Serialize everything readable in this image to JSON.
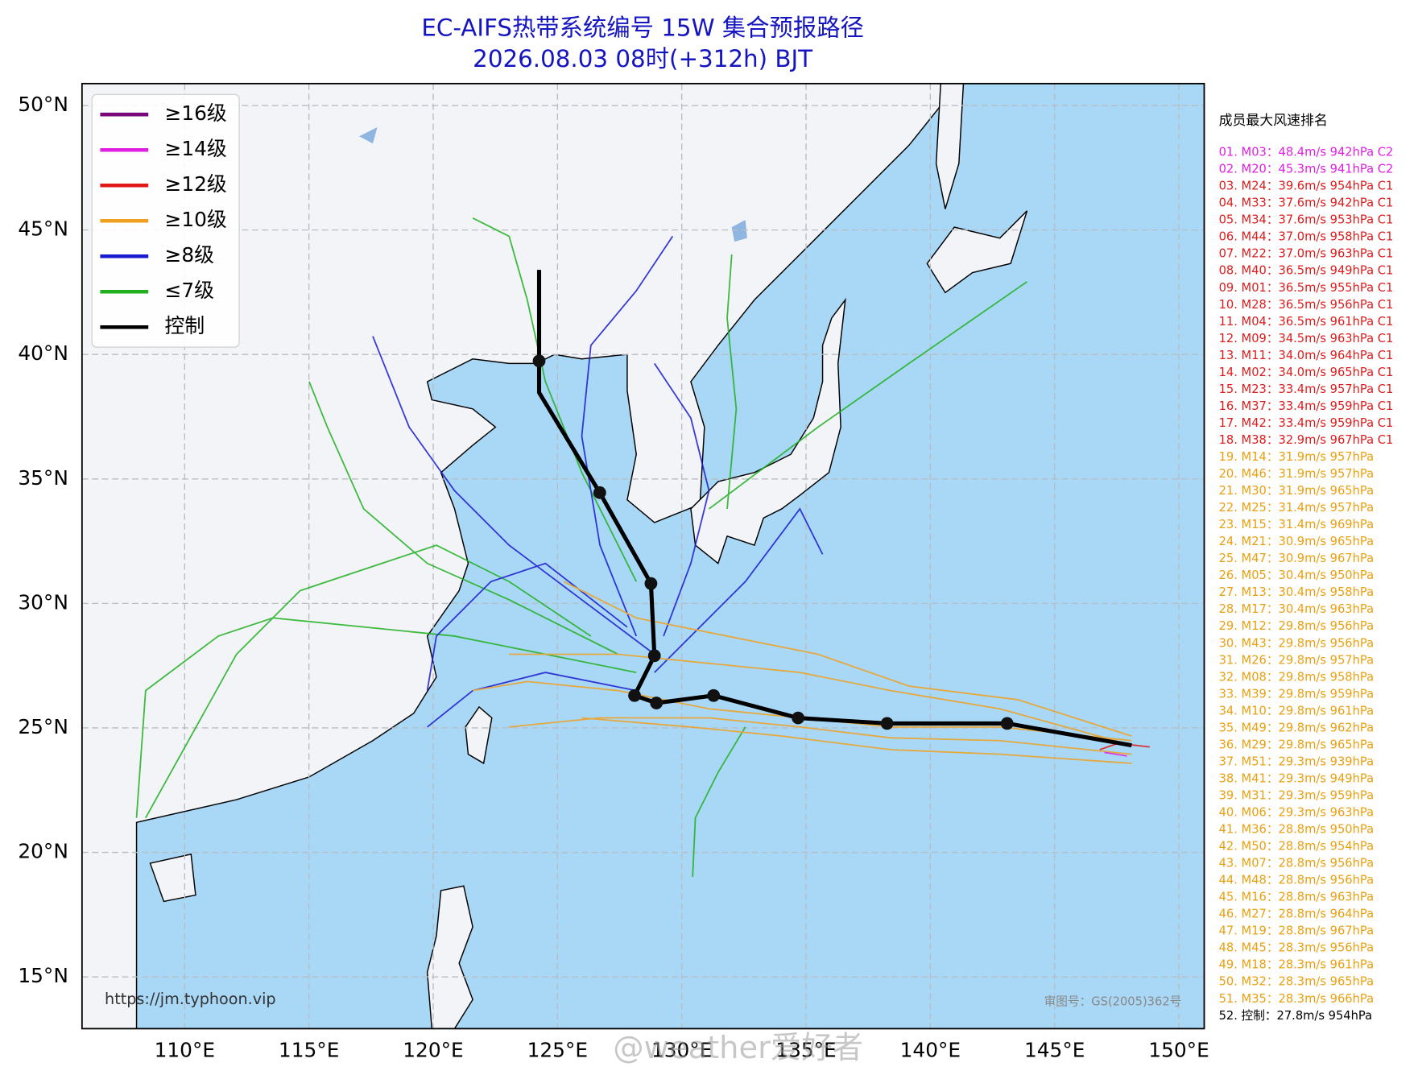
{
  "map": {
    "title": "EC-AIFS热带系统编号 15W 集合预报路径",
    "subtitle": "2026.08.03 08时(+312h) BJT",
    "lonlim": [
      105.87,
      151.02
    ],
    "latlim": [
      12.92,
      50.88
    ],
    "lon_ticks": [
      {
        "value": 110,
        "label": "110°E"
      },
      {
        "value": 115,
        "label": "115°E"
      },
      {
        "value": 120,
        "label": "120°E"
      },
      {
        "value": 125,
        "label": "125°E"
      },
      {
        "value": 130,
        "label": "130°E"
      },
      {
        "value": 135,
        "label": "135°E"
      },
      {
        "value": 140,
        "label": "140°E"
      },
      {
        "value": 145,
        "label": "145°E"
      },
      {
        "value": 150,
        "label": "150°E"
      }
    ],
    "lat_ticks": [
      {
        "value": 15,
        "label": "15°N"
      },
      {
        "value": 20,
        "label": "20°N"
      },
      {
        "value": 25,
        "label": "25°N"
      },
      {
        "value": 30,
        "label": "30°N"
      },
      {
        "value": 35,
        "label": "35°N"
      },
      {
        "value": 40,
        "label": "40°N"
      },
      {
        "value": 45,
        "label": "45°N"
      },
      {
        "value": 50,
        "label": "50°N"
      }
    ],
    "grid": true,
    "legend": [
      {
        "label": "≥16级",
        "color": "#7a0a7a"
      },
      {
        "label": "≥14级",
        "color": "#e020e0"
      },
      {
        "label": "≥12级",
        "color": "#e01818"
      },
      {
        "label": "≥10级",
        "color": "#f0a020"
      },
      {
        "label": "≥8级",
        "color": "#1a1ad0"
      },
      {
        "label": "≤7级",
        "color": "#20b020"
      },
      {
        "label": "控制",
        "color": "#000000"
      }
    ],
    "control_track": {
      "lon": [
        148.1,
        143.09,
        138.26,
        134.68,
        131.28,
        128.98,
        128.1,
        128.9,
        128.76,
        126.7,
        124.26,
        124.26,
        124.26
      ],
      "lat": [
        24.3,
        25.18,
        25.18,
        25.4,
        26.3,
        26.0,
        26.3,
        27.9,
        30.8,
        34.45,
        38.47,
        39.74,
        43.4
      ]
    },
    "control_points": {
      "lon": [
        143.09,
        138.26,
        134.68,
        131.28,
        128.98,
        128.1,
        128.9,
        128.76,
        126.7,
        124.26
      ],
      "lat": [
        25.18,
        25.18,
        25.4,
        26.3,
        26.0,
        26.3,
        27.9,
        30.8,
        34.45,
        39.74
      ]
    },
    "ranking_title": "成员最大风速排名",
    "ranking": [
      {
        "text": "01. M03：48.4m/s 942hPa C2",
        "color": "#e020e0"
      },
      {
        "text": "02. M20：45.3m/s 941hPa C2",
        "color": "#e020e0"
      },
      {
        "text": "03. M24：39.6m/s 954hPa C1",
        "color": "#dd1c1c"
      },
      {
        "text": "04. M33：37.6m/s 942hPa C1",
        "color": "#dd1c1c"
      },
      {
        "text": "05. M34：37.6m/s 953hPa C1",
        "color": "#dd1c1c"
      },
      {
        "text": "06. M44：37.0m/s 958hPa C1",
        "color": "#dd1c1c"
      },
      {
        "text": "07. M22：37.0m/s 963hPa C1",
        "color": "#dd1c1c"
      },
      {
        "text": "08. M40：36.5m/s 949hPa C1",
        "color": "#dd1c1c"
      },
      {
        "text": "09. M01：36.5m/s 955hPa C1",
        "color": "#dd1c1c"
      },
      {
        "text": "10. M28：36.5m/s 956hPa C1",
        "color": "#dd1c1c"
      },
      {
        "text": "11. M04：36.5m/s 961hPa C1",
        "color": "#dd1c1c"
      },
      {
        "text": "12. M09：34.5m/s 963hPa C1",
        "color": "#dd1c1c"
      },
      {
        "text": "13. M11：34.0m/s 964hPa C1",
        "color": "#dd1c1c"
      },
      {
        "text": "14. M02：34.0m/s 965hPa C1",
        "color": "#dd1c1c"
      },
      {
        "text": "15. M23：33.4m/s 957hPa C1",
        "color": "#dd1c1c"
      },
      {
        "text": "16. M37：33.4m/s 959hPa C1",
        "color": "#dd1c1c"
      },
      {
        "text": "17. M42：33.4m/s 959hPa C1",
        "color": "#dd1c1c"
      },
      {
        "text": "18. M38：32.9m/s 967hPa C1",
        "color": "#dd1c1c"
      },
      {
        "text": "19. M14：31.9m/s 957hPa",
        "color": "#eaa010"
      },
      {
        "text": "20. M46：31.9m/s 957hPa",
        "color": "#eaa010"
      },
      {
        "text": "21. M30：31.9m/s 965hPa",
        "color": "#eaa010"
      },
      {
        "text": "22. M25：31.4m/s 957hPa",
        "color": "#eaa010"
      },
      {
        "text": "23. M15：31.4m/s 969hPa",
        "color": "#eaa010"
      },
      {
        "text": "24. M21：30.9m/s 965hPa",
        "color": "#eaa010"
      },
      {
        "text": "25. M47：30.9m/s 967hPa",
        "color": "#eaa010"
      },
      {
        "text": "26. M05：30.4m/s 950hPa",
        "color": "#eaa010"
      },
      {
        "text": "27. M13：30.4m/s 958hPa",
        "color": "#eaa010"
      },
      {
        "text": "28. M17：30.4m/s 963hPa",
        "color": "#eaa010"
      },
      {
        "text": "29. M12：29.8m/s 956hPa",
        "color": "#eaa010"
      },
      {
        "text": "30. M43：29.8m/s 956hPa",
        "color": "#eaa010"
      },
      {
        "text": "31. M26：29.8m/s 957hPa",
        "color": "#eaa010"
      },
      {
        "text": "32. M08：29.8m/s 958hPa",
        "color": "#eaa010"
      },
      {
        "text": "33. M39：29.8m/s 959hPa",
        "color": "#eaa010"
      },
      {
        "text": "34. M10：29.8m/s 961hPa",
        "color": "#eaa010"
      },
      {
        "text": "35. M49：29.8m/s 962hPa",
        "color": "#eaa010"
      },
      {
        "text": "36. M29：29.8m/s 965hPa",
        "color": "#eaa010"
      },
      {
        "text": "37. M51：29.3m/s 939hPa",
        "color": "#eaa010"
      },
      {
        "text": "38. M41：29.3m/s 949hPa",
        "color": "#eaa010"
      },
      {
        "text": "39. M31：29.3m/s 959hPa",
        "color": "#eaa010"
      },
      {
        "text": "40. M06：29.3m/s 963hPa",
        "color": "#eaa010"
      },
      {
        "text": "41. M36：28.8m/s 950hPa",
        "color": "#eaa010"
      },
      {
        "text": "42. M50：28.8m/s 954hPa",
        "color": "#eaa010"
      },
      {
        "text": "43. M07：28.8m/s 956hPa",
        "color": "#eaa010"
      },
      {
        "text": "44. M48：28.8m/s 956hPa",
        "color": "#eaa010"
      },
      {
        "text": "45. M16：28.8m/s 963hPa",
        "color": "#eaa010"
      },
      {
        "text": "46. M27：28.8m/s 964hPa",
        "color": "#eaa010"
      },
      {
        "text": "47. M19：28.8m/s 967hPa",
        "color": "#eaa010"
      },
      {
        "text": "48. M45：28.3m/s 956hPa",
        "color": "#eaa010"
      },
      {
        "text": "49. M18：28.3m/s 961hPa",
        "color": "#eaa010"
      },
      {
        "text": "50. M32：28.3m/s 965hPa",
        "color": "#eaa010"
      },
      {
        "text": "51. M35：28.3m/s 966hPa",
        "color": "#eaa010"
      },
      {
        "text": "52. 控制：27.8m/s 954hPa",
        "color": "#000000"
      }
    ],
    "source_url": "https://jm.typhoon.vip",
    "approval": "审图号：GS(2005)362号",
    "watermark": "@weather爱好者"
  }
}
